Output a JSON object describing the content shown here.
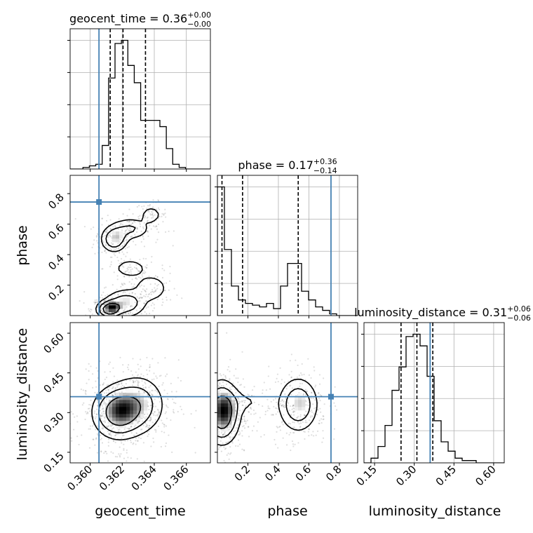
{
  "colors": {
    "truth": "#4682b4",
    "line": "#000000",
    "grid": "#b0b0b0"
  },
  "chart_data": {
    "type": "corner",
    "parameters": [
      "geocent_time",
      "phase",
      "luminosity_distance"
    ],
    "truths": {
      "geocent_time": 0.36055,
      "phase": 0.745,
      "luminosity_distance": 0.36
    },
    "ranges": {
      "geocent_time": [
        0.35875,
        0.3675
      ],
      "phase": [
        0.0,
        0.92
      ],
      "luminosity_distance": [
        0.11,
        0.64
      ]
    },
    "ticks": {
      "geocent_time": {
        "values": [
          0.36,
          0.362,
          0.364,
          0.366
        ],
        "labels": [
          "0.360",
          "0.362",
          "0.364",
          "0.366"
        ]
      },
      "phase": {
        "values": [
          0.2,
          0.4,
          0.6,
          0.8
        ],
        "labels": [
          "0.2",
          "0.4",
          "0.6",
          "0.8"
        ]
      },
      "luminosity_distance": {
        "values": [
          0.15,
          0.3,
          0.45,
          0.6
        ],
        "labels": [
          "0.15",
          "0.30",
          "0.45",
          "0.60"
        ]
      }
    },
    "marginals": [
      {
        "param": "geocent_time",
        "title": {
          "text": "geocent_time = 0.36",
          "upper": "+0.00",
          "lower": "−0.00"
        },
        "quantiles": [
          0.36125,
          0.36205,
          0.36345
        ],
        "bins_edges": [
          0.35875,
          0.35915,
          0.35955,
          0.35995,
          0.36035,
          0.36075,
          0.36115,
          0.36155,
          0.36195,
          0.36235,
          0.36275,
          0.36315,
          0.36355,
          0.36395,
          0.36435,
          0.36475,
          0.36515,
          0.36555,
          0.36595,
          0.36635,
          0.36675,
          0.36715,
          0.36755
        ],
        "counts": [
          0,
          0,
          1,
          2,
          3,
          15,
          58,
          80,
          82,
          66,
          55,
          31,
          31,
          31,
          27,
          13,
          3,
          1,
          0,
          0,
          0,
          0
        ]
      },
      {
        "param": "phase",
        "title": {
          "text": "phase = 0.17",
          "upper": "+0.36",
          "lower": "−0.14"
        },
        "quantiles": [
          0.03,
          0.165,
          0.53
        ],
        "bins_edges": [
          0.0,
          0.046,
          0.092,
          0.138,
          0.184,
          0.23,
          0.276,
          0.322,
          0.368,
          0.414,
          0.46,
          0.506,
          0.552,
          0.598,
          0.644,
          0.69,
          0.736,
          0.782,
          0.828,
          0.874,
          0.92
        ],
        "counts": [
          74,
          38,
          17,
          9,
          7,
          6,
          5,
          7,
          4,
          17,
          30,
          30,
          14,
          9,
          5,
          3,
          1,
          0,
          0,
          0
        ]
      },
      {
        "param": "luminosity_distance",
        "title": {
          "text": "luminosity_distance = 0.31",
          "upper": "+0.06",
          "lower": "−0.06"
        },
        "quantiles": [
          0.25,
          0.31,
          0.37
        ],
        "bins_edges": [
          0.11,
          0.1365,
          0.163,
          0.1895,
          0.216,
          0.2425,
          0.269,
          0.2955,
          0.322,
          0.3485,
          0.375,
          0.4015,
          0.428,
          0.4545,
          0.481,
          0.5075,
          0.534,
          0.5605,
          0.587,
          0.6135,
          0.64
        ],
        "counts": [
          0,
          2,
          7,
          16,
          31,
          41,
          54,
          55,
          50,
          37,
          18,
          9,
          5,
          2,
          1,
          1,
          0,
          0,
          0,
          0
        ]
      }
    ],
    "joint_panels": [
      {
        "x": "geocent_time",
        "y": "phase",
        "density_blobs": [
          {
            "cx": 0.3615,
            "cy": 0.5,
            "sx": 0.00045,
            "sy": 0.045,
            "rot": 0.0,
            "w": 1.0
          },
          {
            "cx": 0.3625,
            "cy": 0.57,
            "sx": 0.0007,
            "sy": 0.04,
            "rot": 0.0,
            "w": 0.6
          },
          {
            "cx": 0.3638,
            "cy": 0.66,
            "sx": 0.00035,
            "sy": 0.03,
            "rot": 0.0,
            "w": 0.5
          },
          {
            "cx": 0.3625,
            "cy": 0.31,
            "sx": 0.0006,
            "sy": 0.035,
            "rot": 0.0,
            "w": 0.45
          },
          {
            "cx": 0.3612,
            "cy": 0.04,
            "sx": 0.0004,
            "sy": 0.03,
            "rot": 0.0,
            "w": 1.6
          },
          {
            "cx": 0.3622,
            "cy": 0.08,
            "sx": 0.0007,
            "sy": 0.05,
            "rot": 0.0,
            "w": 0.9
          },
          {
            "cx": 0.3638,
            "cy": 0.18,
            "sx": 0.0006,
            "sy": 0.05,
            "rot": 0.0,
            "w": 0.5
          }
        ]
      },
      {
        "x": "geocent_time",
        "y": "luminosity_distance",
        "density_blobs": [
          {
            "cx": 0.3617,
            "cy": 0.3,
            "sx": 0.0008,
            "sy": 0.05,
            "rot": 0.0,
            "w": 1.0
          },
          {
            "cx": 0.363,
            "cy": 0.33,
            "sx": 0.0009,
            "sy": 0.06,
            "rot": 0.0,
            "w": 0.55
          }
        ]
      },
      {
        "x": "phase",
        "y": "luminosity_distance",
        "density_blobs": [
          {
            "cx": 0.03,
            "cy": 0.3,
            "sx": 0.06,
            "sy": 0.06,
            "rot": 0.0,
            "w": 1.0
          },
          {
            "cx": 0.53,
            "cy": 0.33,
            "sx": 0.07,
            "sy": 0.055,
            "rot": 0.0,
            "w": 0.55
          },
          {
            "cx": 0.2,
            "cy": 0.34,
            "sx": 0.1,
            "sy": 0.03,
            "rot": 0.0,
            "w": 0.12
          }
        ]
      }
    ],
    "grid": true
  }
}
